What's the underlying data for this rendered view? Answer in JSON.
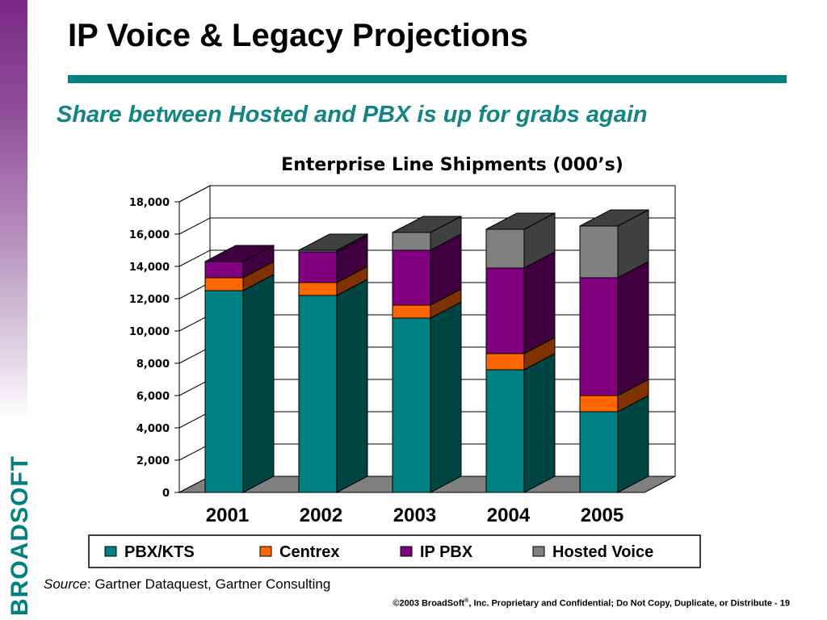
{
  "slide": {
    "title": "IP Voice & Legacy Projections",
    "subtitle": "Share between Hosted and PBX is up for grabs again",
    "source_label": "Source",
    "source_text": ": Gartner Dataquest, Gartner Consulting",
    "footer_prefix": "©2003 BroadSoft",
    "footer_mark": "®",
    "footer_suffix": ", Inc. Proprietary and Confidential; Do Not Copy, Duplicate, or Distribute - 19",
    "logo_text": "BROADSOFT",
    "accent_color": "#008080",
    "subtitle_color": "#138484"
  },
  "chart_data": {
    "type": "bar",
    "stacked": true,
    "three_d": true,
    "title": "Enterprise Line Shipments (000’s)",
    "categories": [
      "2001",
      "2002",
      "2003",
      "2004",
      "2005"
    ],
    "series": [
      {
        "name": "PBX/KTS",
        "color": "#008080",
        "side_color": "#004444",
        "values": [
          12500,
          12200,
          10800,
          7600,
          5000
        ]
      },
      {
        "name": "Centrex",
        "color": "#ff6600",
        "side_color": "#803300",
        "values": [
          800,
          800,
          800,
          1000,
          1000
        ]
      },
      {
        "name": "IP PBX",
        "color": "#800080",
        "side_color": "#400040",
        "values": [
          1000,
          1900,
          3400,
          5300,
          7300
        ]
      },
      {
        "name": "Hosted Voice",
        "color": "#808080",
        "side_color": "#404040",
        "values": [
          0,
          100,
          1100,
          2400,
          3200
        ]
      }
    ],
    "yticks": [
      "0",
      "2,000",
      "4,000",
      "6,000",
      "8,000",
      "10,000",
      "12,000",
      "14,000",
      "16,000",
      "18,000"
    ],
    "ylim": [
      0,
      18000
    ],
    "grid": true,
    "legend_position": "bottom"
  }
}
